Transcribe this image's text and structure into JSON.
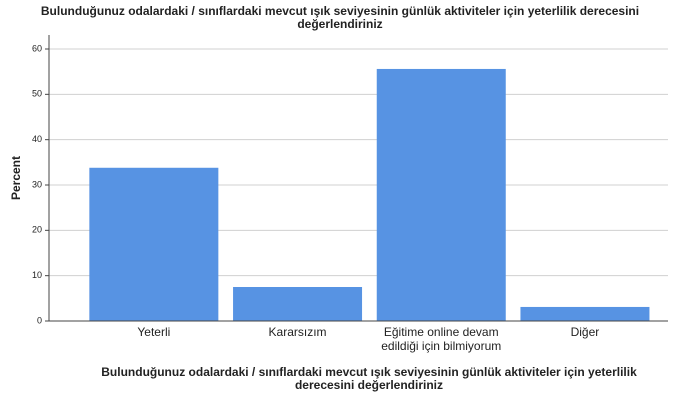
{
  "chart_data": {
    "type": "bar",
    "title": [
      "Bulunduğunuz odalardaki / sınıflardaki mevcut ışık seviyesinin günlük aktiviteler için yeterlilik derecesini",
      "değerlendiriniz"
    ],
    "xlabel": [
      "Bulunduğunuz odalardaki / sınıflardaki mevcut ışık seviyesinin günlük aktiviteler için yeterlilik",
      "derecesini değerlendiriniz"
    ],
    "ylabel": "Percent",
    "categories": [
      "Yeterli",
      "Kararsızım",
      "Eğitime online devam\nedildiği için bilmiyorum",
      "Diğer"
    ],
    "values": [
      33.8,
      7.5,
      55.6,
      3.1
    ],
    "color": "#5793e3",
    "ylim": [
      0,
      60
    ],
    "yticks": [
      0,
      10,
      20,
      30,
      40,
      50,
      60
    ],
    "grid": true
  }
}
